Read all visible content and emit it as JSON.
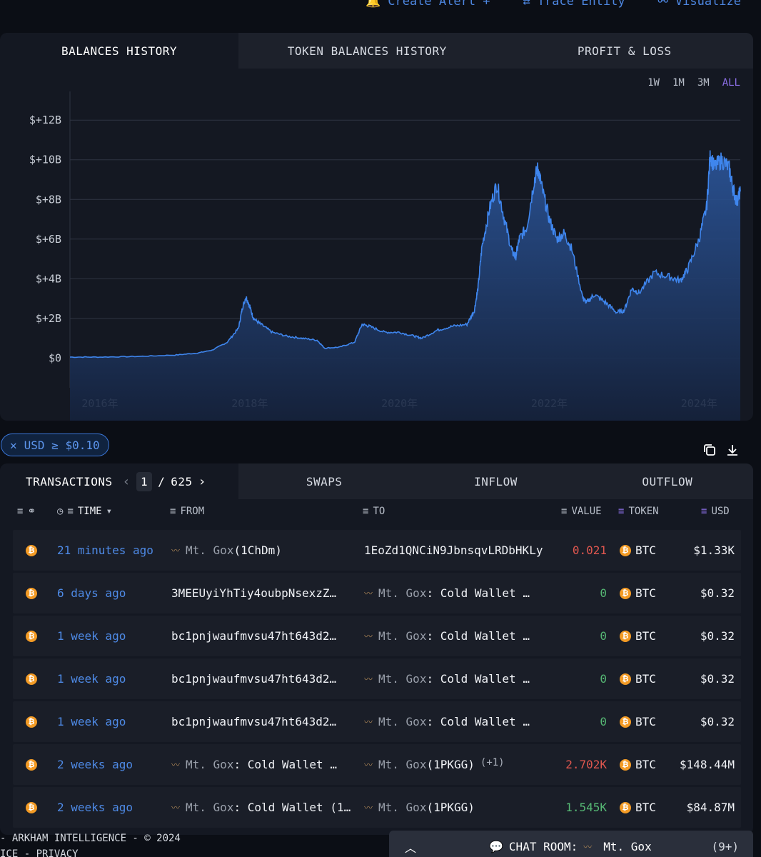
{
  "topbar": {
    "create_alert": "Create Alert +",
    "trace_entity": "Trace Entity",
    "visualize": "Visualize"
  },
  "chart_tabs": [
    {
      "label": "BALANCES HISTORY",
      "active": true
    },
    {
      "label": "TOKEN BALANCES HISTORY",
      "active": false
    },
    {
      "label": "PROFIT & LOSS",
      "active": false
    }
  ],
  "ranges": [
    "1W",
    "1M",
    "3M",
    "ALL"
  ],
  "active_range": "ALL",
  "chart_data": {
    "type": "area",
    "title": "",
    "xlabel": "",
    "ylabel": "",
    "y_ticks": [
      "$+12B",
      "$+10B",
      "$+8B",
      "$+6B",
      "$+4B",
      "$+2B",
      "$0"
    ],
    "y_tick_values": [
      12,
      10,
      8,
      6,
      4,
      2,
      0
    ],
    "x_ticks": [
      "2016年",
      "2018年",
      "2020年",
      "2022年",
      "2024年"
    ],
    "x_tick_values": [
      2016,
      2018,
      2020,
      2022,
      2024
    ],
    "xlim": [
      2015.6,
      2024.55
    ],
    "ylim": [
      -1.5,
      12.8
    ],
    "units": "USD billions",
    "grid": true,
    "series": [
      {
        "x": [
          2015.6,
          2016.0,
          2016.5,
          2017.0,
          2017.3,
          2017.5,
          2017.7,
          2017.85,
          2017.9,
          2017.95,
          2018.0,
          2018.05,
          2018.15,
          2018.3,
          2018.5,
          2018.7,
          2018.9,
          2019.0,
          2019.2,
          2019.4,
          2019.5,
          2019.6,
          2019.8,
          2020.0,
          2020.2,
          2020.3,
          2020.5,
          2020.7,
          2020.9,
          2021.0,
          2021.05,
          2021.1,
          2021.2,
          2021.3,
          2021.4,
          2021.5,
          2021.55,
          2021.6,
          2021.7,
          2021.8,
          2021.85,
          2021.9,
          2022.0,
          2022.1,
          2022.2,
          2022.3,
          2022.45,
          2022.5,
          2022.6,
          2022.75,
          2022.9,
          2023.0,
          2023.1,
          2023.2,
          2023.4,
          2023.6,
          2023.75,
          2023.85,
          2024.0,
          2024.1,
          2024.15,
          2024.2,
          2024.3,
          2024.4,
          2024.45,
          2024.5,
          2024.55
        ],
        "y": [
          0.05,
          0.05,
          0.08,
          0.15,
          0.25,
          0.4,
          0.8,
          1.5,
          2.5,
          3.1,
          2.6,
          2.0,
          1.7,
          1.3,
          1.1,
          1.0,
          0.9,
          0.5,
          0.55,
          0.8,
          1.7,
          1.6,
          1.3,
          1.3,
          1.1,
          1.0,
          1.4,
          1.6,
          1.7,
          2.4,
          3.6,
          5.6,
          7.5,
          8.8,
          7.0,
          5.4,
          5.1,
          6.0,
          6.6,
          9.0,
          9.6,
          8.6,
          7.0,
          6.0,
          6.3,
          5.5,
          3.0,
          2.8,
          3.2,
          2.8,
          2.3,
          2.4,
          3.5,
          3.3,
          4.3,
          4.1,
          3.9,
          4.5,
          6.0,
          7.6,
          10.3,
          9.6,
          10.0,
          9.6,
          8.6,
          7.9,
          8.4
        ]
      }
    ]
  },
  "filter": {
    "label": "USD ≥ $0.10"
  },
  "tx_tabs": [
    {
      "label": "TRANSACTIONS",
      "active": true
    },
    {
      "label": "SWAPS",
      "active": false
    },
    {
      "label": "INFLOW",
      "active": false
    },
    {
      "label": "OUTFLOW",
      "active": false
    }
  ],
  "pager": {
    "current": "1",
    "separator": "/",
    "total": "625"
  },
  "columns": {
    "time": "TIME",
    "from": "FROM",
    "to": "TO",
    "value": "VALUE",
    "token": "TOKEN",
    "usd": "USD"
  },
  "rows": [
    {
      "time": "21 minutes ago",
      "from_entity": true,
      "from_name": "Mt. Gox",
      "from_extra": " (1ChDm)",
      "to_entity": false,
      "to_name": "1EoZd1QNCiN9JbnsqvLRDbHKLy",
      "to_extra": "",
      "to_plus": "",
      "value": "0.021",
      "value_color": "red",
      "token": "BTC",
      "usd": "$1.33K"
    },
    {
      "time": "6 days ago",
      "from_entity": false,
      "from_name": "3MEEUyiYhTiy4oubpNsexzZ…",
      "from_extra": "",
      "to_entity": true,
      "to_name": "Mt. Gox",
      "to_extra": ": Cold Wallet …",
      "to_plus": "",
      "value": "0",
      "value_color": "green",
      "token": "BTC",
      "usd": "$0.32"
    },
    {
      "time": "1 week ago",
      "from_entity": false,
      "from_name": "bc1pnjwaufmvsu47ht643d2…",
      "from_extra": "",
      "to_entity": true,
      "to_name": "Mt. Gox",
      "to_extra": ": Cold Wallet …",
      "to_plus": "",
      "value": "0",
      "value_color": "green",
      "token": "BTC",
      "usd": "$0.32"
    },
    {
      "time": "1 week ago",
      "from_entity": false,
      "from_name": "bc1pnjwaufmvsu47ht643d2…",
      "from_extra": "",
      "to_entity": true,
      "to_name": "Mt. Gox",
      "to_extra": ": Cold Wallet …",
      "to_plus": "",
      "value": "0",
      "value_color": "green",
      "token": "BTC",
      "usd": "$0.32"
    },
    {
      "time": "1 week ago",
      "from_entity": false,
      "from_name": "bc1pnjwaufmvsu47ht643d2…",
      "from_extra": "",
      "to_entity": true,
      "to_name": "Mt. Gox",
      "to_extra": ": Cold Wallet …",
      "to_plus": "",
      "value": "0",
      "value_color": "green",
      "token": "BTC",
      "usd": "$0.32"
    },
    {
      "time": "2 weeks ago",
      "from_entity": true,
      "from_name": "Mt. Gox",
      "from_extra": ": Cold Wallet …",
      "to_entity": true,
      "to_name": "Mt. Gox",
      "to_extra": " (1PKGG)",
      "to_plus": "(+1)",
      "value": "2.702K",
      "value_color": "red",
      "token": "BTC",
      "usd": "$148.44M"
    },
    {
      "time": "2 weeks ago",
      "from_entity": true,
      "from_name": "Mt. Gox",
      "from_extra": ": Cold Wallet (1…",
      "to_entity": true,
      "to_name": "Mt. Gox",
      "to_extra": " (1PKGG)",
      "to_plus": "",
      "value": "1.545K",
      "value_color": "green",
      "token": "BTC",
      "usd": "$84.87M"
    }
  ],
  "footer": {
    "line1": "- ARKHAM INTELLIGENCE - © 2024",
    "line2": "ICE - PRIVACY"
  },
  "chat": {
    "label": "CHAT ROOM:",
    "entity": "Mt. Gox",
    "count": "(9+)"
  },
  "colors": {
    "accent": "#4d86e0",
    "line": "#3f86ee",
    "btc": "#f39b25",
    "negative": "#e0574f",
    "positive": "#56b874"
  }
}
